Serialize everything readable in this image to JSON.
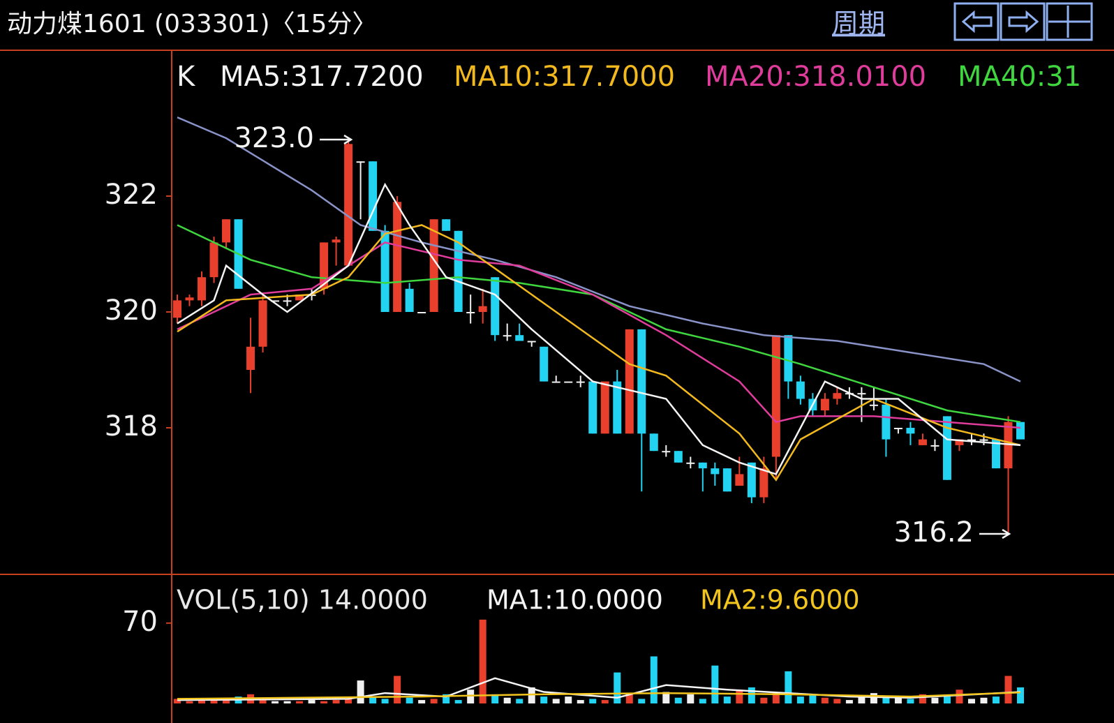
{
  "header": {
    "title": "动力煤1601 (033301)〈15分〉",
    "period_button": "周期"
  },
  "chart_data": [
    {
      "type": "candlestick",
      "label": "K",
      "ylim": [
        315.5,
        324.5
      ],
      "yticks": [
        318,
        320,
        322
      ],
      "up_color": "#e8402c",
      "down_color": "#22d3f2",
      "flat_color": "#f0f0f0",
      "ohlc": [
        [
          319.9,
          320.3,
          319.8,
          320.2
        ],
        [
          320.2,
          320.3,
          320.1,
          320.25
        ],
        [
          320.2,
          320.7,
          320.1,
          320.6
        ],
        [
          320.6,
          321.3,
          320.5,
          321.2
        ],
        [
          321.2,
          321.6,
          321.1,
          321.6
        ],
        [
          321.6,
          321.6,
          320.4,
          320.4
        ],
        [
          319.0,
          319.9,
          318.6,
          319.4
        ],
        [
          319.4,
          320.3,
          319.3,
          320.2
        ],
        [
          320.2,
          320.2,
          320.2,
          320.2
        ],
        [
          320.2,
          320.3,
          320.1,
          320.2
        ],
        [
          320.2,
          320.3,
          320.2,
          320.3
        ],
        [
          320.3,
          320.4,
          320.2,
          320.3
        ],
        [
          320.4,
          321.2,
          320.3,
          321.2
        ],
        [
          321.2,
          321.3,
          320.8,
          321.25
        ],
        [
          320.8,
          323.0,
          320.8,
          322.9
        ],
        [
          322.6,
          322.6,
          321.6,
          322.6
        ],
        [
          322.6,
          322.6,
          321.4,
          321.4
        ],
        [
          321.4,
          321.5,
          320.0,
          320.0
        ],
        [
          320.0,
          322.0,
          320.0,
          321.9
        ],
        [
          320.4,
          320.5,
          320.0,
          320.0
        ],
        [
          320.0,
          320.0,
          320.0,
          320.0
        ],
        [
          320.0,
          321.6,
          320.0,
          321.6
        ],
        [
          321.6,
          321.6,
          321.4,
          321.4
        ],
        [
          321.4,
          321.4,
          320.0,
          320.0
        ],
        [
          320.0,
          320.3,
          319.8,
          320.0
        ],
        [
          320.0,
          320.4,
          319.8,
          320.1
        ],
        [
          320.6,
          320.6,
          319.5,
          319.6
        ],
        [
          319.6,
          319.8,
          319.5,
          319.6
        ],
        [
          319.6,
          319.8,
          319.5,
          319.5
        ],
        [
          319.5,
          319.5,
          319.4,
          319.5
        ],
        [
          319.4,
          319.4,
          318.8,
          318.8
        ],
        [
          318.8,
          318.9,
          318.8,
          318.8
        ],
        [
          318.8,
          318.8,
          318.8,
          318.8
        ],
        [
          318.8,
          318.9,
          318.7,
          318.8
        ],
        [
          318.8,
          318.8,
          317.9,
          317.9
        ],
        [
          317.9,
          318.8,
          317.9,
          318.8
        ],
        [
          318.8,
          319.0,
          317.9,
          317.9
        ],
        [
          317.9,
          319.7,
          317.9,
          319.7
        ],
        [
          319.7,
          319.7,
          316.9,
          317.9
        ],
        [
          317.9,
          317.9,
          317.6,
          317.6
        ],
        [
          317.6,
          317.7,
          317.5,
          317.6
        ],
        [
          317.6,
          317.6,
          317.4,
          317.4
        ],
        [
          317.4,
          317.5,
          317.3,
          317.4
        ],
        [
          317.4,
          317.4,
          316.9,
          317.3
        ],
        [
          317.3,
          317.4,
          317.0,
          317.2
        ],
        [
          317.3,
          317.3,
          316.9,
          316.9
        ],
        [
          317.0,
          317.5,
          317.0,
          317.2
        ],
        [
          317.4,
          317.4,
          316.7,
          316.8
        ],
        [
          316.8,
          317.5,
          316.7,
          317.3
        ],
        [
          317.5,
          319.6,
          317.1,
          319.6
        ],
        [
          319.6,
          319.6,
          318.5,
          318.8
        ],
        [
          318.8,
          318.9,
          318.4,
          318.5
        ],
        [
          318.5,
          318.6,
          318.2,
          318.3
        ],
        [
          318.3,
          318.6,
          318.2,
          318.5
        ],
        [
          318.5,
          318.7,
          318.4,
          318.6
        ],
        [
          318.6,
          318.7,
          318.5,
          318.6
        ],
        [
          318.6,
          318.7,
          318.1,
          318.6
        ],
        [
          318.4,
          318.7,
          318.3,
          318.4
        ],
        [
          318.4,
          318.5,
          317.5,
          317.8
        ],
        [
          318.0,
          318.0,
          317.9,
          318.0
        ],
        [
          318.0,
          318.1,
          317.7,
          317.9
        ],
        [
          317.7,
          317.9,
          317.7,
          317.8
        ],
        [
          317.7,
          317.8,
          317.6,
          317.7
        ],
        [
          318.2,
          318.2,
          317.1,
          317.1
        ],
        [
          317.7,
          317.8,
          317.6,
          317.8
        ],
        [
          317.8,
          317.9,
          317.7,
          317.8
        ],
        [
          317.8,
          317.9,
          317.7,
          317.8
        ],
        [
          317.8,
          317.8,
          317.3,
          317.3
        ],
        [
          317.3,
          318.2,
          316.2,
          318.1
        ],
        [
          318.1,
          318.1,
          317.8,
          317.8
        ]
      ],
      "lines": [
        {
          "color": "#8a93c8",
          "x": [
            0,
            4,
            11,
            15,
            20,
            26,
            31,
            37,
            43,
            48,
            54,
            60,
            66,
            69
          ],
          "values": [
            323.36,
            323.0,
            322.1,
            321.5,
            321.2,
            320.9,
            320.6,
            320.1,
            319.8,
            319.6,
            319.5,
            319.3,
            319.1,
            318.8
          ]
        },
        {
          "label": "MA40:31",
          "color": "#3fd63f",
          "x": [
            0,
            3,
            6,
            11,
            17,
            23,
            28,
            34,
            40,
            46,
            51,
            57,
            63,
            69
          ],
          "values": [
            321.5,
            321.2,
            320.9,
            320.6,
            320.5,
            320.6,
            320.5,
            320.3,
            319.7,
            319.4,
            319.1,
            318.7,
            318.3,
            318.1
          ]
        },
        {
          "label": "MA20:318.0100",
          "color": "#e03c9c",
          "x": [
            0,
            6,
            11,
            17,
            23,
            28,
            34,
            40,
            46,
            49,
            51,
            57,
            63,
            69
          ],
          "values": [
            319.7,
            320.3,
            320.4,
            321.2,
            320.9,
            320.8,
            320.3,
            319.6,
            318.8,
            318.1,
            318.2,
            318.2,
            318.1,
            318.0
          ]
        },
        {
          "label": "MA10:317.7000",
          "color": "#f2b91e",
          "x": [
            0,
            4,
            11,
            14,
            17,
            20,
            23,
            27,
            31,
            37,
            40,
            46,
            49,
            51,
            57,
            63,
            69
          ],
          "values": [
            319.66,
            320.2,
            320.3,
            320.6,
            321.35,
            321.5,
            321.2,
            320.6,
            320.0,
            319.1,
            318.9,
            317.9,
            317.1,
            317.8,
            318.5,
            318.0,
            317.7
          ]
        },
        {
          "label": "MA5:317.7200",
          "color": "#f4f4f4",
          "x": [
            0,
            3,
            4,
            7,
            9,
            14,
            17,
            19,
            22,
            26,
            29,
            34,
            40,
            43,
            46,
            49,
            53,
            56,
            59,
            63,
            69
          ],
          "values": [
            319.8,
            320.2,
            320.8,
            320.3,
            320.0,
            320.8,
            322.2,
            321.5,
            320.6,
            320.3,
            319.7,
            318.8,
            318.5,
            317.7,
            317.4,
            317.2,
            318.8,
            318.5,
            318.5,
            317.8,
            317.7
          ]
        }
      ],
      "annotations": [
        "323.0",
        "316.2"
      ]
    },
    {
      "type": "bar",
      "label": "VOL(5,10) 14.0000",
      "ylim": [
        0,
        110
      ],
      "yticks": [
        70
      ],
      "values": [
        4,
        2,
        3,
        3,
        5,
        6,
        8,
        3,
        2,
        2,
        2,
        3,
        2,
        3,
        4,
        20,
        6,
        4,
        24,
        5,
        3,
        4,
        8,
        3,
        12,
        73,
        8,
        5,
        4,
        14,
        6,
        4,
        6,
        3,
        4,
        3,
        27,
        8,
        4,
        41,
        10,
        5,
        8,
        4,
        33,
        6,
        12,
        14,
        5,
        10,
        28,
        6,
        8,
        5,
        4,
        3,
        7,
        9,
        5,
        6,
        4,
        8,
        5,
        6,
        12,
        4,
        5,
        6,
        24,
        14
      ],
      "lines": [
        {
          "label": "MA1:10.0000",
          "color": "#f4f4f4",
          "x": [
            0,
            14,
            17,
            22,
            26,
            30,
            36,
            40,
            45,
            50,
            55,
            60,
            69
          ],
          "values": [
            3,
            4,
            9,
            6,
            22,
            10,
            5,
            16,
            12,
            9,
            6,
            5,
            10
          ]
        },
        {
          "label": "MA2:9.6000",
          "color": "#f2c51e",
          "x": [
            0,
            10,
            20,
            30,
            40,
            50,
            60,
            69
          ],
          "values": [
            4,
            5,
            6,
            8,
            9,
            8,
            6,
            9.6
          ]
        }
      ]
    }
  ]
}
